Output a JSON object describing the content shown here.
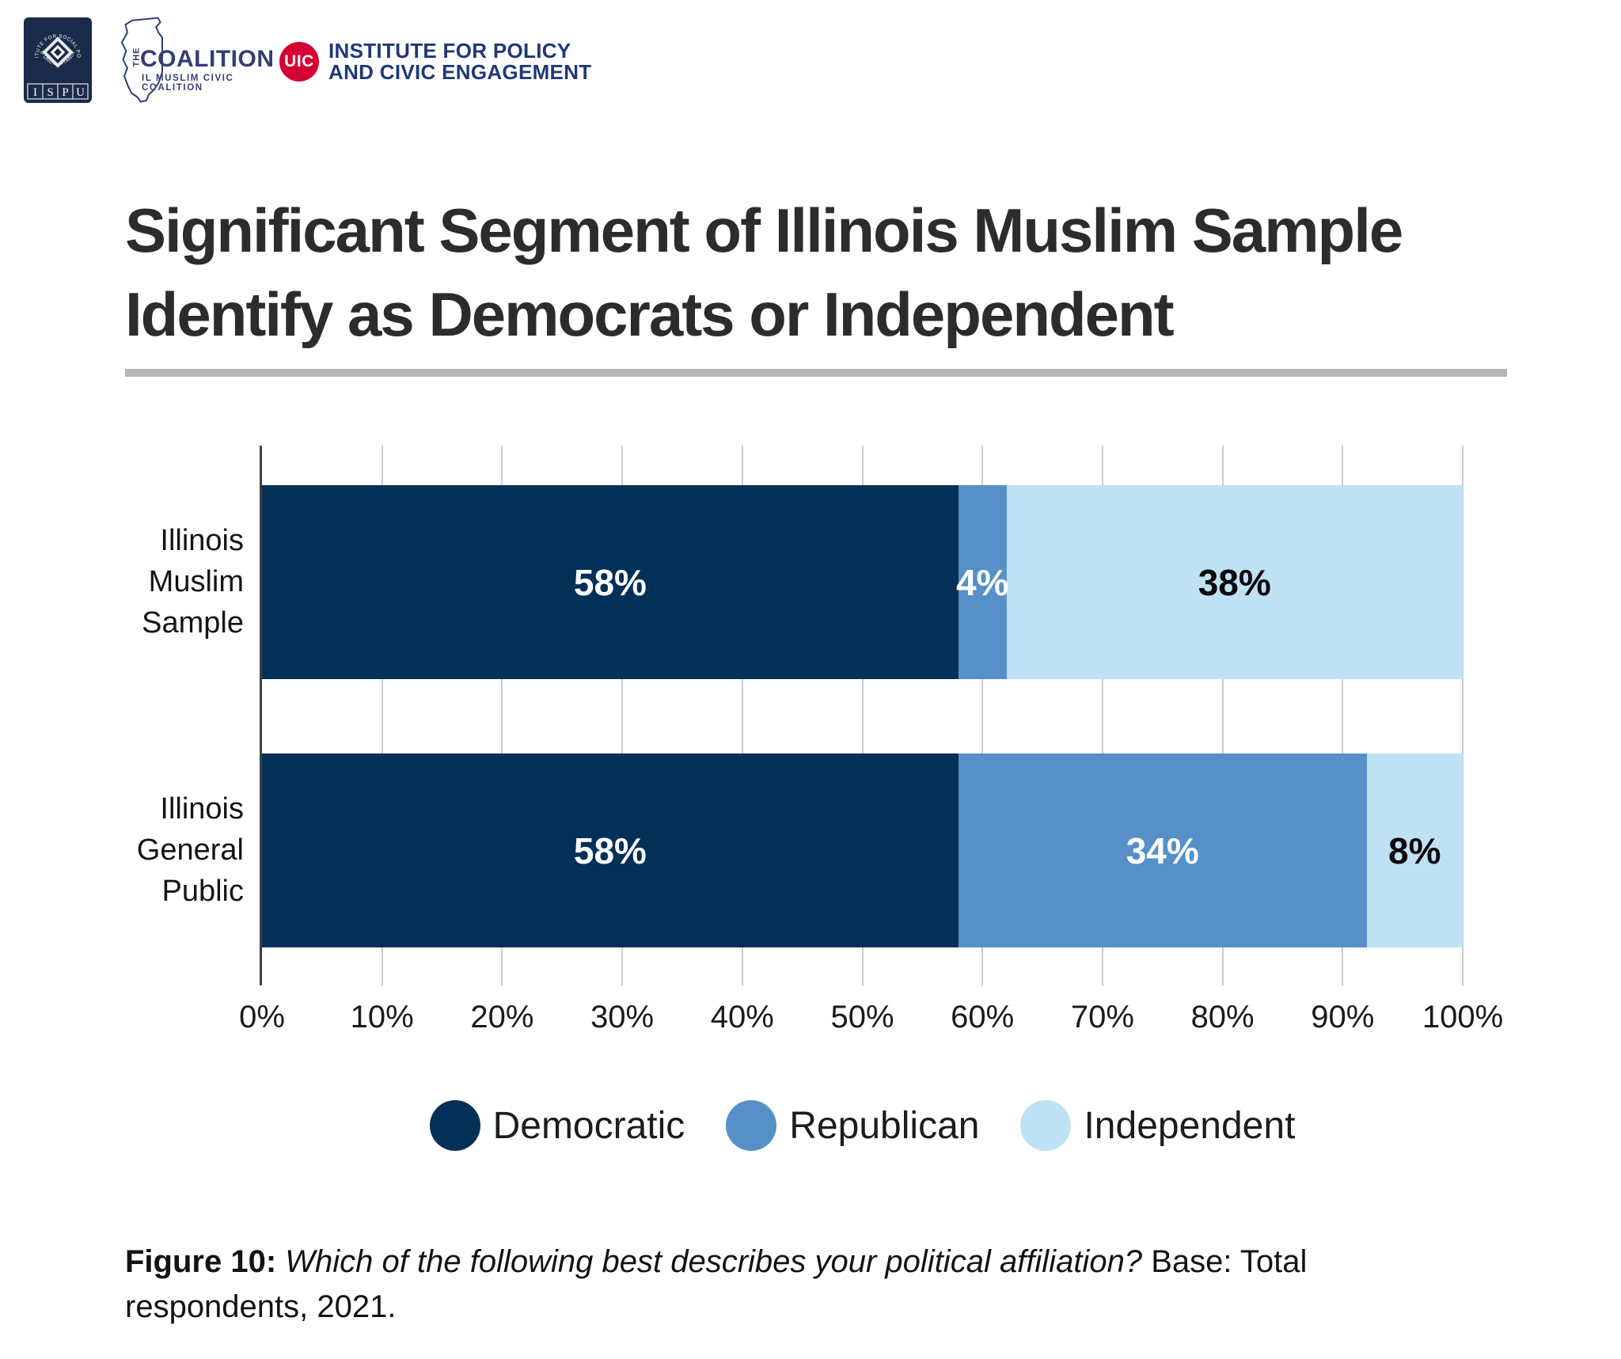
{
  "header": {
    "logos": {
      "ispu": {
        "ring_top": "INSTITUTE FOR SOCIAL POLICY",
        "ring_bottom": "AND UNDERSTANDING",
        "letters": [
          "I",
          "S",
          "P",
          "U"
        ],
        "navy": "#1b2a4a"
      },
      "coalition": {
        "the": "THE",
        "name": "COALITION",
        "subtitle": "IL MUSLIM CIVIC COALITION",
        "navy": "#333e75"
      },
      "uic": {
        "acronym": "UIC",
        "line1": "INSTITUTE FOR POLICY",
        "line2": "AND CIVIC ENGAGEMENT",
        "red": "#d50032",
        "navy": "#1f3876"
      }
    }
  },
  "title": {
    "line1": "Significant Segment of Illinois Muslim Sample",
    "line2": "Identify as Democrats or Independent"
  },
  "chart_data": {
    "type": "bar",
    "orientation": "horizontal",
    "stacked": true,
    "grid": true,
    "legend_position": "bottom",
    "xlim": [
      0,
      100
    ],
    "x_ticks": [
      "0%",
      "10%",
      "20%",
      "30%",
      "40%",
      "50%",
      "60%",
      "70%",
      "80%",
      "90%",
      "100%"
    ],
    "categories": [
      "Illinois Muslim Sample",
      "Illinois General Public"
    ],
    "category_lines": [
      [
        "Illinois",
        "Muslim",
        "Sample"
      ],
      [
        "Illinois",
        "General",
        "Public"
      ]
    ],
    "series": [
      {
        "name": "Democratic",
        "color": "#033057",
        "label_color": "#ffffff",
        "values": [
          58,
          58
        ]
      },
      {
        "name": "Republican",
        "color": "#5790c8",
        "label_color": "#ffffff",
        "values": [
          4,
          34
        ]
      },
      {
        "name": "Independent",
        "color": "#bfe1f4",
        "label_color": "#0a0a0a",
        "values": [
          38,
          8
        ]
      }
    ],
    "value_suffix": "%"
  },
  "caption": {
    "figure_label": "Figure 10:",
    "question": "Which of the following best describes your political affiliation?",
    "base": "Base: Total respondents, 2021."
  }
}
